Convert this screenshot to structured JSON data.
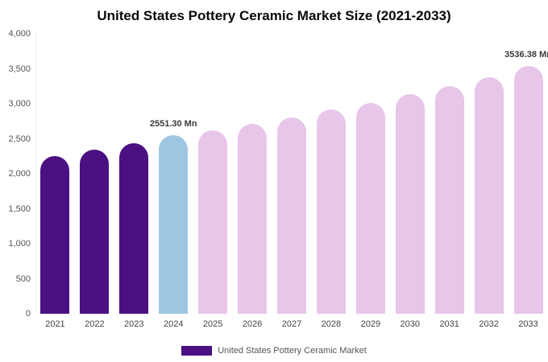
{
  "chart_data": {
    "type": "bar",
    "title": "United States Pottery Ceramic Market Size (2021-2033)",
    "categories": [
      "2021",
      "2022",
      "2023",
      "2024",
      "2025",
      "2026",
      "2027",
      "2028",
      "2029",
      "2030",
      "2031",
      "2032",
      "2033"
    ],
    "values": [
      2255,
      2345,
      2435,
      2551.3,
      2620,
      2715,
      2810,
      2915,
      3015,
      3135,
      3250,
      3375,
      3536.38
    ],
    "bar_colors": [
      "#4b1082",
      "#4b1082",
      "#4b1082",
      "#9dc6e3",
      "#e7c6ea",
      "#e7c6ea",
      "#e7c6ea",
      "#e7c6ea",
      "#e7c6ea",
      "#e7c6ea",
      "#e7c6ea",
      "#e7c6ea",
      "#e7c6ea"
    ],
    "xlabel": "",
    "ylabel": "",
    "ylim": [
      0,
      4000
    ],
    "yticks": [
      0,
      500,
      1000,
      1500,
      2000,
      2500,
      3000,
      3500,
      4000
    ],
    "ytick_labels": [
      "0",
      "500",
      "1,000",
      "1,500",
      "2,000",
      "2,500",
      "3,000",
      "3,500",
      "4,000"
    ],
    "grid": false,
    "legend_position": "bottom",
    "annotations": [
      {
        "index": 3,
        "text": "2551.30 Mn"
      },
      {
        "index": 12,
        "text": "3536.38 Mn"
      }
    ],
    "legend": [
      {
        "label": "United States Pottery Ceramic Market",
        "color": "#4b1082"
      }
    ]
  },
  "colors": {
    "background": "#ffffff",
    "dark_purple": "#4b1082",
    "light_blue": "#9dc6e3",
    "light_pink": "#e7c6ea",
    "annotation_text": "#3a3a3a",
    "axis_text": "#555555"
  }
}
